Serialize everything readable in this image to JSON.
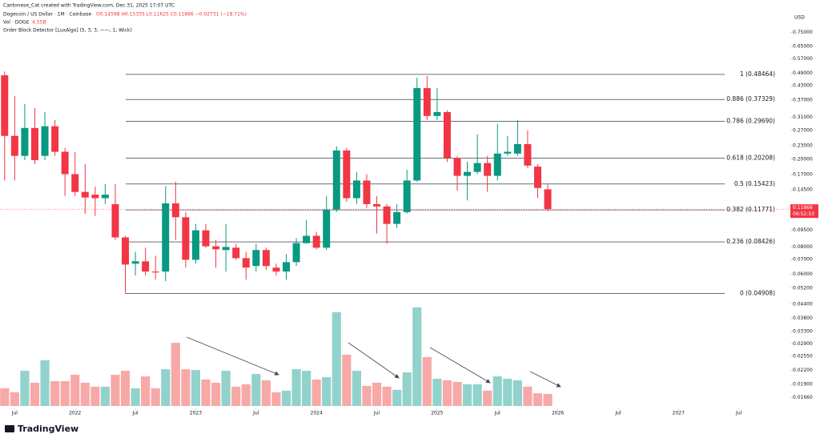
{
  "chart_data": {
    "type": "candlestick",
    "watermark": "Cantonese_Cat created with TradingView.com, Dec 31, 2025 17:07 UTC",
    "symbol": "Dogecoin / US Dollar · 1M · Coinbase",
    "quote": "O0.14598 H0.15335 L0.11625 C0.11866 −0.02731 (−18.71%)",
    "volume_label": "Vol · DOGE",
    "volume_value": "4.55B",
    "indicator": "Order Block Detector [LuxAlgo] (5, 3, 3, ——, 1, Wick)",
    "currency": "USD",
    "countdown": "06:52:53",
    "brand": "TradingView",
    "log_scale": true,
    "up_color": "#089981",
    "down_color": "#f23645",
    "volume_up_color": "#92d2cc",
    "volume_down_color": "#f7a9a7",
    "fib_color": "#131722",
    "ylim": [
      0.0148,
      0.97
    ],
    "yticks": [
      {
        "value": 0.75,
        "label": "0.75000"
      },
      {
        "value": 0.65,
        "label": "0.65000"
      },
      {
        "value": 0.57,
        "label": "0.57000"
      },
      {
        "value": 0.49,
        "label": "0.49000"
      },
      {
        "value": 0.43,
        "label": "0.43000"
      },
      {
        "value": 0.37,
        "label": "0.37000"
      },
      {
        "value": 0.31,
        "label": "0.31000"
      },
      {
        "value": 0.27,
        "label": "0.27000"
      },
      {
        "value": 0.23,
        "label": "0.23000"
      },
      {
        "value": 0.2,
        "label": "0.20000"
      },
      {
        "value": 0.17,
        "label": "0.17000"
      },
      {
        "value": 0.145,
        "label": "0.14500"
      },
      {
        "value": 0.095,
        "label": "0.09500"
      },
      {
        "value": 0.08,
        "label": "0.08000"
      },
      {
        "value": 0.07,
        "label": "0.07000"
      },
      {
        "value": 0.06,
        "label": "0.06000"
      },
      {
        "value": 0.052,
        "label": "0.05200"
      },
      {
        "value": 0.044,
        "label": "0.04400"
      },
      {
        "value": 0.038,
        "label": "0.03800"
      },
      {
        "value": 0.033,
        "label": "0.03300"
      },
      {
        "value": 0.029,
        "label": "0.02900"
      },
      {
        "value": 0.0255,
        "label": "0.02550"
      },
      {
        "value": 0.022,
        "label": "0.02200"
      },
      {
        "value": 0.019,
        "label": "0.01900"
      },
      {
        "value": 0.0166,
        "label": "0.01660"
      }
    ],
    "xticks": [
      {
        "value": 1,
        "label": "Jul"
      },
      {
        "value": 7,
        "label": "2022"
      },
      {
        "value": 13,
        "label": "Jul"
      },
      {
        "value": 19,
        "label": "2023"
      },
      {
        "value": 25,
        "label": "Jul"
      },
      {
        "value": 31,
        "label": "2024"
      },
      {
        "value": 37,
        "label": "Jul"
      },
      {
        "value": 43,
        "label": "2025"
      },
      {
        "value": 49,
        "label": "Jul"
      },
      {
        "value": 55,
        "label": "2026"
      },
      {
        "value": 61,
        "label": "Jul"
      },
      {
        "value": 67,
        "label": "2027"
      },
      {
        "value": 73,
        "label": "Jul"
      }
    ],
    "fib_levels": [
      {
        "value": 0.48464,
        "label": "1 (0.48464)"
      },
      {
        "value": 0.37329,
        "label": "0.886 (0.37329)"
      },
      {
        "value": 0.2969,
        "label": "0.786 (0.29690)"
      },
      {
        "value": 0.20208,
        "label": "0.618 (0.20208)"
      },
      {
        "value": 0.15423,
        "label": "0.5 (0.15423)"
      },
      {
        "value": 0.11771,
        "label": "0.382 (0.11771)"
      },
      {
        "value": 0.08426,
        "label": "0.236 (0.08426)"
      },
      {
        "value": 0.04908,
        "label": "0 (0.04908)"
      }
    ],
    "open": [
      0.48,
      0.255,
      0.207,
      0.277,
      0.207,
      0.282,
      0.216,
      0.171,
      0.142,
      0.138,
      0.133,
      0.125,
      0.0883,
      0.0671,
      0.0688,
      0.0618,
      0.0618,
      0.126,
      0.109,
      0.0699,
      0.0951,
      0.0805,
      0.0774,
      0.0793,
      0.0711,
      0.0655,
      0.0774,
      0.0644,
      0.0618,
      0.0682,
      0.0832,
      0.0898,
      0.0793,
      0.118,
      0.219,
      0.133,
      0.16,
      0.125,
      0.122,
      0.1017,
      0.115,
      0.16,
      0.42,
      0.314,
      0.327,
      0.202,
      0.168,
      0.175,
      0.192,
      0.168,
      0.212,
      0.212,
      0.234,
      0.185,
      0.14598
    ],
    "high": [
      0.5,
      0.387,
      0.356,
      0.341,
      0.327,
      0.301,
      0.225,
      0.216,
      0.19,
      0.15,
      0.154,
      0.154,
      0.0898,
      0.076,
      0.0793,
      0.0729,
      0.151,
      0.158,
      0.115,
      0.1017,
      0.1017,
      0.0861,
      0.1017,
      0.0826,
      0.076,
      0.0826,
      0.0793,
      0.0671,
      0.0741,
      0.0876,
      0.106,
      0.0936,
      0.136,
      0.229,
      0.225,
      0.175,
      0.171,
      0.136,
      0.125,
      0.125,
      0.179,
      0.469,
      0.477,
      0.42,
      0.333,
      0.207,
      0.195,
      0.259,
      0.207,
      0.289,
      0.255,
      0.301,
      0.27,
      0.19,
      0.15335
    ],
    "low": [
      0.16,
      0.16,
      0.198,
      0.19,
      0.198,
      0.207,
      0.136,
      0.136,
      0.113,
      0.1105,
      0.125,
      0.0861,
      0.0491,
      0.0593,
      0.0593,
      0.0568,
      0.0559,
      0.0861,
      0.0644,
      0.0671,
      0.0793,
      0.0644,
      0.0618,
      0.0699,
      0.0568,
      0.0618,
      0.0628,
      0.0593,
      0.0568,
      0.0655,
      0.0826,
      0.078,
      0.0774,
      0.115,
      0.128,
      0.125,
      0.12,
      0.092,
      0.0826,
      0.0975,
      0.113,
      0.158,
      0.301,
      0.301,
      0.194,
      0.144,
      0.13,
      0.171,
      0.142,
      0.16,
      0.207,
      0.207,
      0.182,
      0.133,
      0.11625
    ],
    "close": [
      0.255,
      0.207,
      0.277,
      0.198,
      0.282,
      0.216,
      0.171,
      0.142,
      0.134,
      0.133,
      0.138,
      0.0883,
      0.0665,
      0.0688,
      0.0618,
      0.0612,
      0.126,
      0.109,
      0.0699,
      0.0951,
      0.0805,
      0.078,
      0.0799,
      0.0711,
      0.0644,
      0.0774,
      0.0655,
      0.0618,
      0.0682,
      0.0832,
      0.0898,
      0.0793,
      0.118,
      0.219,
      0.133,
      0.16,
      0.125,
      0.122,
      0.1017,
      0.115,
      0.16,
      0.42,
      0.314,
      0.327,
      0.202,
      0.168,
      0.175,
      0.192,
      0.168,
      0.212,
      0.216,
      0.234,
      0.187,
      0.148,
      0.11866
    ],
    "volume": [
      6.7,
      5.2,
      13.3,
      8.8,
      17.3,
      9.4,
      9.4,
      11.8,
      8.8,
      7.3,
      7.3,
      11.8,
      13.3,
      6.7,
      11.2,
      6.7,
      13.9,
      23.9,
      13.9,
      13.6,
      10.0,
      8.8,
      13.3,
      7.3,
      8.2,
      12.1,
      9.7,
      5.2,
      5.8,
      13.9,
      13.3,
      10.0,
      10.9,
      35.5,
      19.4,
      13.3,
      7.6,
      8.8,
      7.3,
      6.1,
      12.7,
      37.3,
      18.5,
      10.3,
      9.7,
      9.1,
      8.2,
      8.2,
      5.8,
      11.2,
      10.3,
      9.7,
      7.3,
      4.8,
      4.55
    ],
    "volume_ylim": [
      0,
      40
    ]
  }
}
